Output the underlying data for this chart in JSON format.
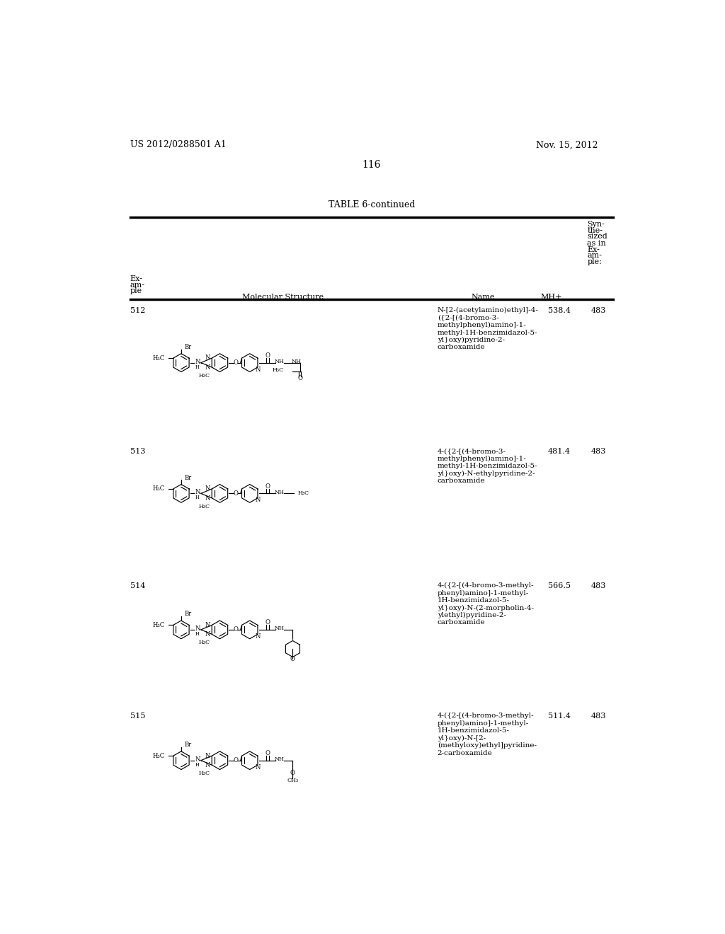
{
  "background_color": "#ffffff",
  "header_left": "US 2012/0288501 A1",
  "header_right": "Nov. 15, 2012",
  "page_number": "116",
  "table_title": "TABLE 6-continued",
  "rows": [
    {
      "example": "512",
      "name": "N-[2-(acetylamino)ethyl]-4-\n({2-[(4-bromo-3-\nmethylphenyl)amino]-1-\nmethyl-1H-benzimidazol-5-\nyl}oxy)pyridine-2-\ncarboxamide",
      "mh": "538.4",
      "synth": "483"
    },
    {
      "example": "513",
      "name": "4-({2-[(4-bromo-3-\nmethylphenyl)amino]-1-\nmethyl-1H-benzimidazol-5-\nyl}oxy)-N-ethylpyridine-2-\ncarboxamide",
      "mh": "481.4",
      "synth": "483"
    },
    {
      "example": "514",
      "name": "4-({2-[(4-bromo-3-methyl-\nphenyl)amino]-1-methyl-\n1H-benzimidazol-5-\nyl}oxy)-N-(2-morpholin-4-\nylethyl)pyridine-2-\ncarboxamide",
      "mh": "566.5",
      "synth": "483"
    },
    {
      "example": "515",
      "name": "4-({2-[(4-bromo-3-methyl-\nphenyl)amino]-1-methyl-\n1H-benzimidazol-5-\nyl}oxy)-N-[2-\n(methyloxy)ethyl]pyridine-\n2-carboxamide",
      "mh": "511.4",
      "synth": "483"
    }
  ]
}
